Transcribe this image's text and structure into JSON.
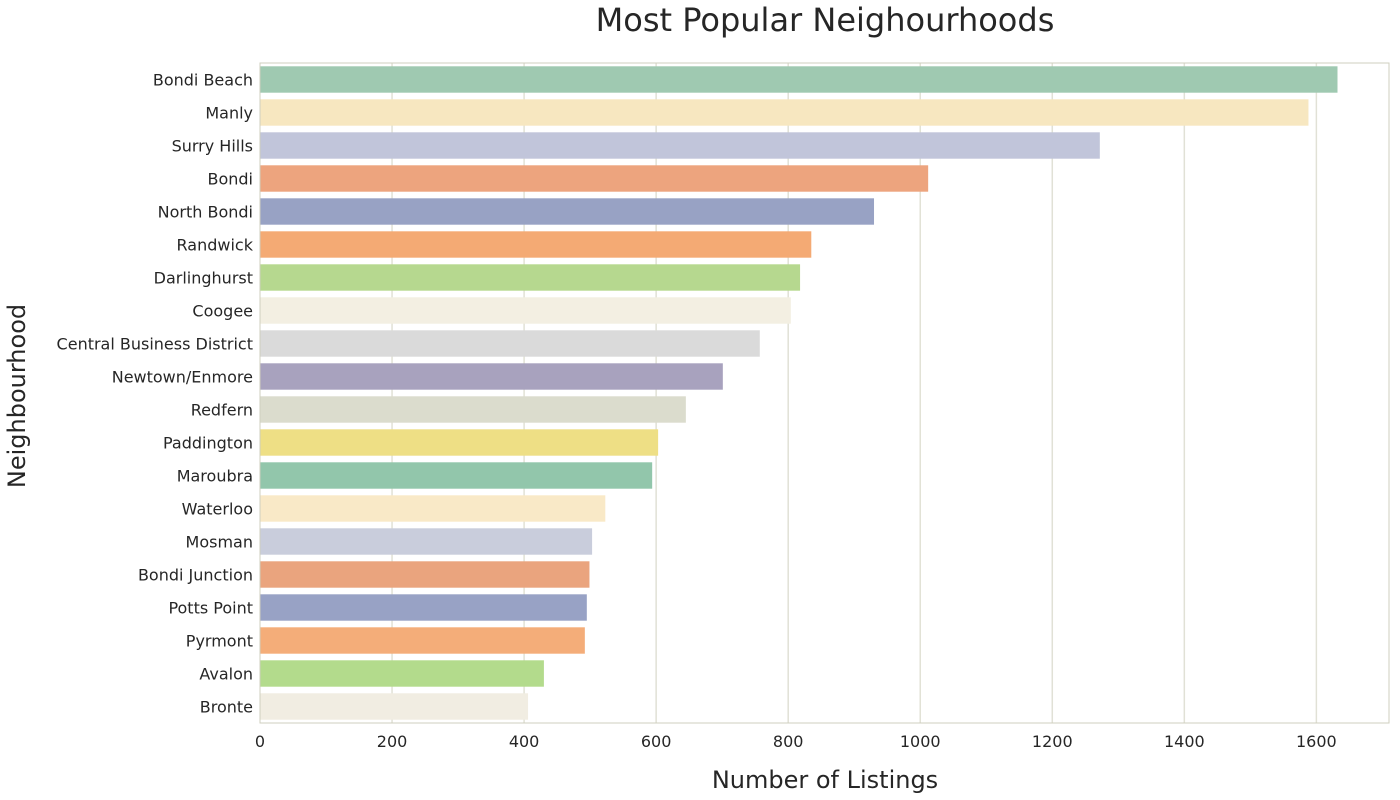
{
  "chart_data": {
    "type": "bar",
    "orientation": "horizontal",
    "title": "Most Popular Neighourhoods",
    "xlabel": "Number of Listings",
    "ylabel": "Neighbourhood",
    "xlim": [
      0,
      1710
    ],
    "xticks": [
      0,
      200,
      400,
      600,
      800,
      1000,
      1200,
      1400,
      1600
    ],
    "grid": "vertical",
    "categories": [
      "Bondi Beach",
      "Manly",
      "Surry Hills",
      "Bondi",
      "North Bondi",
      "Randwick",
      "Darlinghurst",
      "Coogee",
      "Central Business District",
      "Newtown/Enmore",
      "Redfern",
      "Paddington",
      "Maroubra",
      "Waterloo",
      "Mosman",
      "Bondi Junction",
      "Potts Point",
      "Pyrmont",
      "Avalon",
      "Bronte"
    ],
    "values": [
      1632,
      1588,
      1272,
      1012,
      930,
      835,
      818,
      804,
      757,
      701,
      645,
      603,
      594,
      523,
      503,
      499,
      495,
      492,
      430,
      406
    ],
    "colors": [
      "#9fc9b1",
      "#f7e7c0",
      "#c1c5da",
      "#eda47e",
      "#98a2c4",
      "#f4aa74",
      "#b6d88f",
      "#f3efe2",
      "#dadada",
      "#a8a2be",
      "#dbdccd",
      "#eedf85",
      "#92c6ab",
      "#f9e9c7",
      "#c9cddc",
      "#eaa47e",
      "#98a2c5",
      "#f4ad79",
      "#b3db8c",
      "#f1ede2"
    ]
  }
}
